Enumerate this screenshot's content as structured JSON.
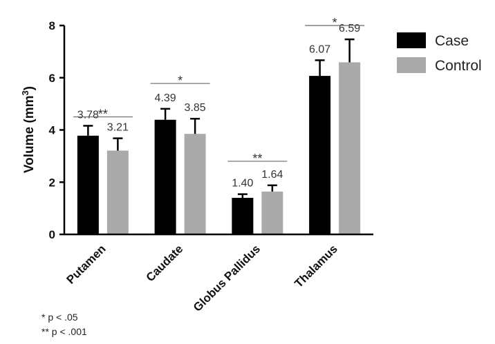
{
  "chart_data": {
    "type": "bar",
    "categories": [
      "Putamen",
      "Caudate",
      "Globus Pallidus",
      "Thalamus"
    ],
    "series": [
      {
        "name": "Case",
        "color": "#000000",
        "values": [
          3.78,
          4.39,
          1.4,
          6.07
        ],
        "errors": [
          0.38,
          0.42,
          0.14,
          0.6
        ],
        "labels": [
          "3.78",
          "4.39",
          "1.40",
          "6.07"
        ]
      },
      {
        "name": "Control",
        "color": "#aaaaaa",
        "values": [
          3.21,
          3.85,
          1.64,
          6.59
        ],
        "errors": [
          0.47,
          0.58,
          0.24,
          0.88
        ],
        "labels": [
          "3.21",
          "3.85",
          "1.64",
          "6.59"
        ]
      }
    ],
    "significance": [
      "**",
      "*",
      "**",
      "*"
    ],
    "significance_levels": [
      4.5,
      5.78,
      2.8,
      8.0
    ],
    "ylabel_main": "Volume  (mm",
    "ylabel_sup": "3",
    "ylabel_close": ")",
    "ylim": [
      0,
      8
    ],
    "yticks": [
      "0",
      "2",
      "4",
      "6",
      "8"
    ],
    "legend_position": "top-right",
    "grid": false
  },
  "footnotes": {
    "line1": "* p < .05",
    "line2": "** p < .001"
  }
}
